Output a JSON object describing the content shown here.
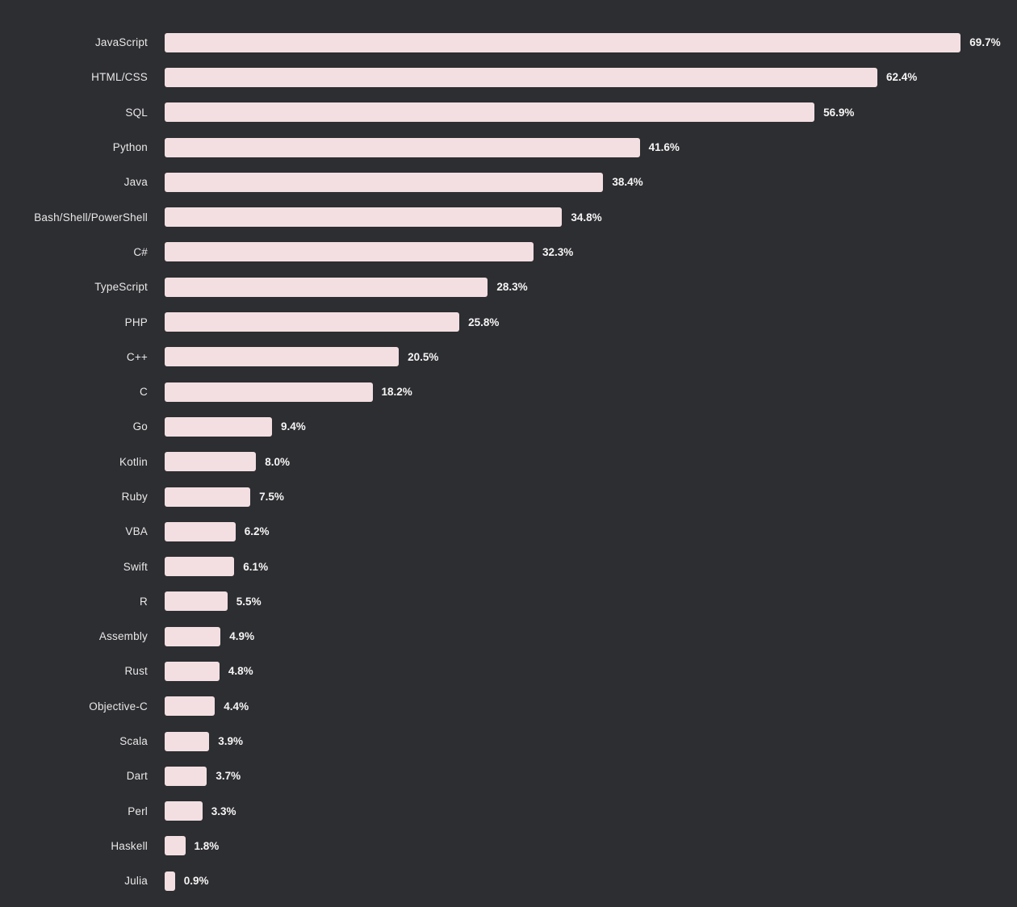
{
  "chart_data": {
    "type": "bar",
    "orientation": "horizontal",
    "categories": [
      "JavaScript",
      "HTML/CSS",
      "SQL",
      "Python",
      "Java",
      "Bash/Shell/PowerShell",
      "C#",
      "TypeScript",
      "PHP",
      "C++",
      "C",
      "Go",
      "Kotlin",
      "Ruby",
      "VBA",
      "Swift",
      "R",
      "Assembly",
      "Rust",
      "Objective-C",
      "Scala",
      "Dart",
      "Perl",
      "Haskell",
      "Julia"
    ],
    "values": [
      69.7,
      62.4,
      56.9,
      41.6,
      38.4,
      34.8,
      32.3,
      28.3,
      25.8,
      20.5,
      18.2,
      9.4,
      8.0,
      7.5,
      6.2,
      6.1,
      5.5,
      4.9,
      4.8,
      4.4,
      3.9,
      3.7,
      3.3,
      1.8,
      0.9
    ],
    "value_suffix": "%",
    "data_labels": true,
    "grid": false,
    "legend": false,
    "bar_color": "#f3dee1",
    "background_color": "#2c2e31",
    "label_color": "#eae7e8",
    "value_color": "#f7f4f5"
  }
}
